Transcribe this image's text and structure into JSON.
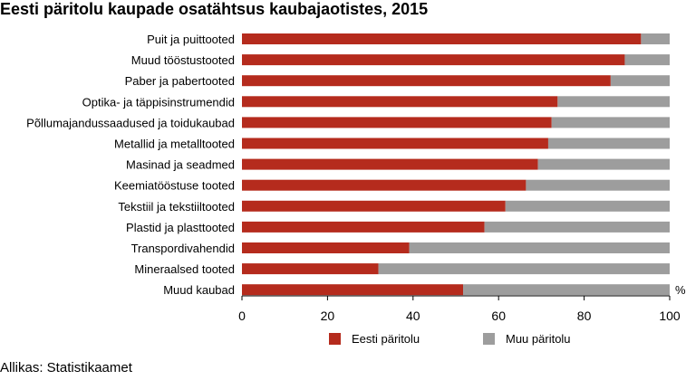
{
  "title": "Eesti päritolu kaupade osatähtsus kaubajaotistes, 2015",
  "source": "Allikas: Statistikaamet",
  "colors": {
    "eesti": "#b52b1d",
    "muu": "#9d9d9d"
  },
  "chart_data": {
    "type": "bar",
    "orientation": "horizontal",
    "stacked": true,
    "title": "Eesti päritolu kaupade osatähtsus kaubajaotistes, 2015",
    "unit_label": "%",
    "xlim": [
      0,
      100
    ],
    "xticks": [
      0,
      20,
      40,
      60,
      80,
      100
    ],
    "legend_position": "bottom",
    "categories": [
      "Puit ja puittooted",
      "Muud tööstustooted",
      "Paber ja pabertooted",
      "Optika- ja täppisinstrumendid",
      "Põllumajandussaadused ja toidukaubad",
      "Metallid ja metalltooted",
      "Masinad ja seadmed",
      "Keemiatööstuse tooted",
      "Tekstiil ja tekstiiltooted",
      "Plastid ja plasttooted",
      "Transpordivahendid",
      "Mineraalsed tooted",
      "Muud kaubad"
    ],
    "series": [
      {
        "name": "Eesti päritolu",
        "color": "#b52b1d",
        "values": [
          93.3,
          89.5,
          86.2,
          73.8,
          72.4,
          71.6,
          69.2,
          66.4,
          61.6,
          56.7,
          39.1,
          31.9,
          51.7
        ]
      },
      {
        "name": "Muu päritolu",
        "color": "#9d9d9d",
        "values": [
          6.7,
          10.5,
          13.8,
          26.2,
          27.6,
          28.4,
          30.8,
          33.6,
          38.4,
          43.3,
          60.9,
          68.1,
          48.3
        ]
      }
    ]
  }
}
